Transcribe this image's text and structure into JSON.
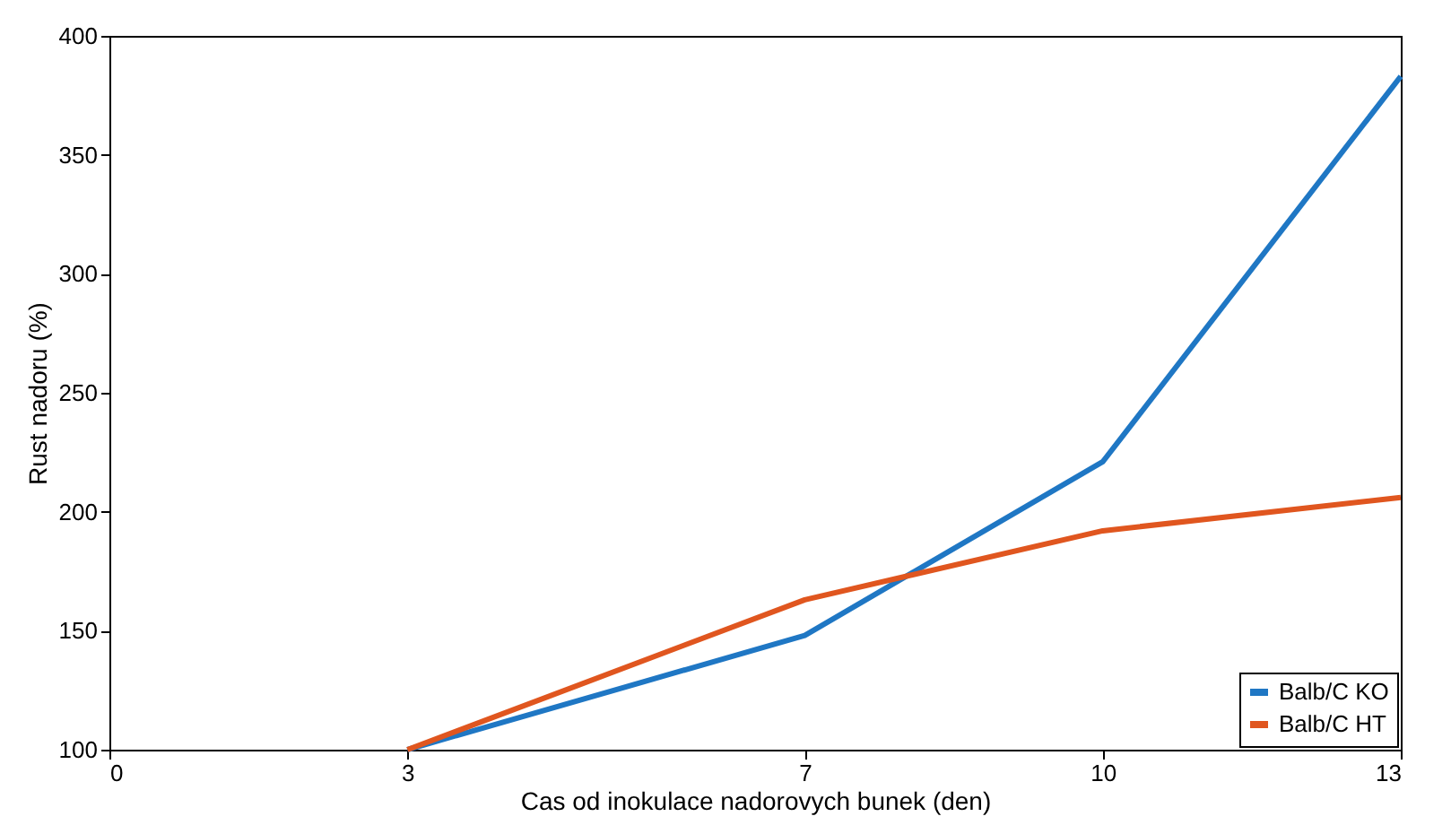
{
  "chart_data": {
    "type": "line",
    "xlabel": "Cas od inokulace nadorovych bunek (den)",
    "ylabel": "Rust nadoru (%)",
    "x": [
      3,
      7,
      10,
      13
    ],
    "series": [
      {
        "name": "Balb/C KO",
        "color": "#1f77c4",
        "values": [
          100,
          148,
          221,
          383
        ]
      },
      {
        "name": "Balb/C HT",
        "color": "#e0561f",
        "values": [
          100,
          163,
          192,
          206
        ]
      }
    ],
    "xlim": [
      0,
      13
    ],
    "xticks": [
      0,
      3,
      7,
      10,
      13
    ],
    "ylim": [
      100,
      400
    ],
    "yticks": [
      100,
      150,
      200,
      250,
      300,
      350,
      400
    ],
    "grid": false,
    "legend": "bottom right",
    "marker": "none",
    "line_style": "solid"
  }
}
